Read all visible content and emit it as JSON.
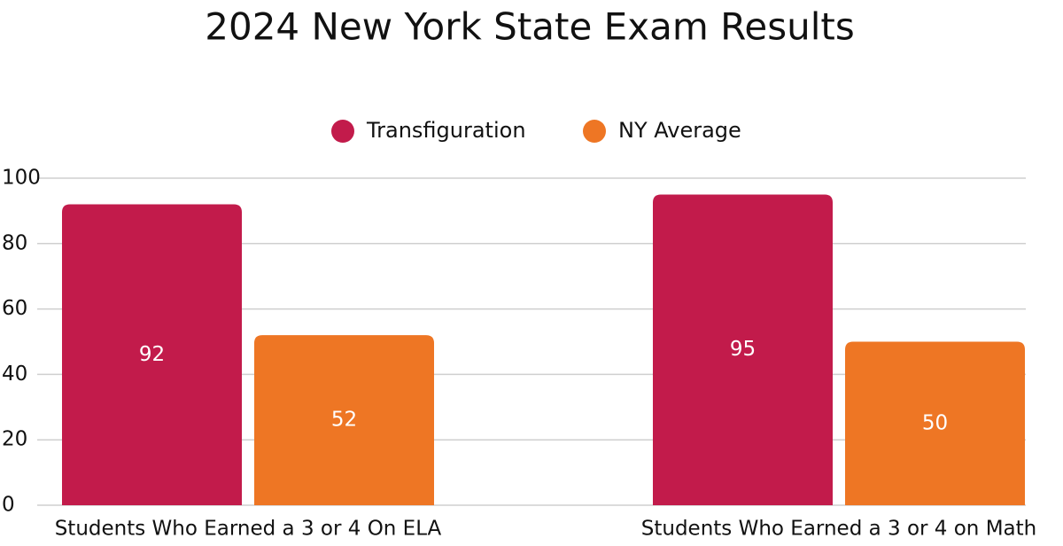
{
  "chart_data": {
    "type": "bar",
    "title": "2024 New York State Exam Results",
    "categories": [
      "Students Who Earned a 3 or 4 On ELA",
      "Students Who Earned a 3 or 4 on Math"
    ],
    "series": [
      {
        "name": "Transfiguration",
        "color": "#c21b4b",
        "values": [
          92,
          95
        ]
      },
      {
        "name": "NY Average",
        "color": "#ee7624",
        "values": [
          52,
          50
        ]
      }
    ],
    "ylim": [
      0,
      100
    ],
    "yticks": [
      0,
      20,
      40,
      60,
      80,
      100
    ],
    "grid": true,
    "legend": "top"
  }
}
